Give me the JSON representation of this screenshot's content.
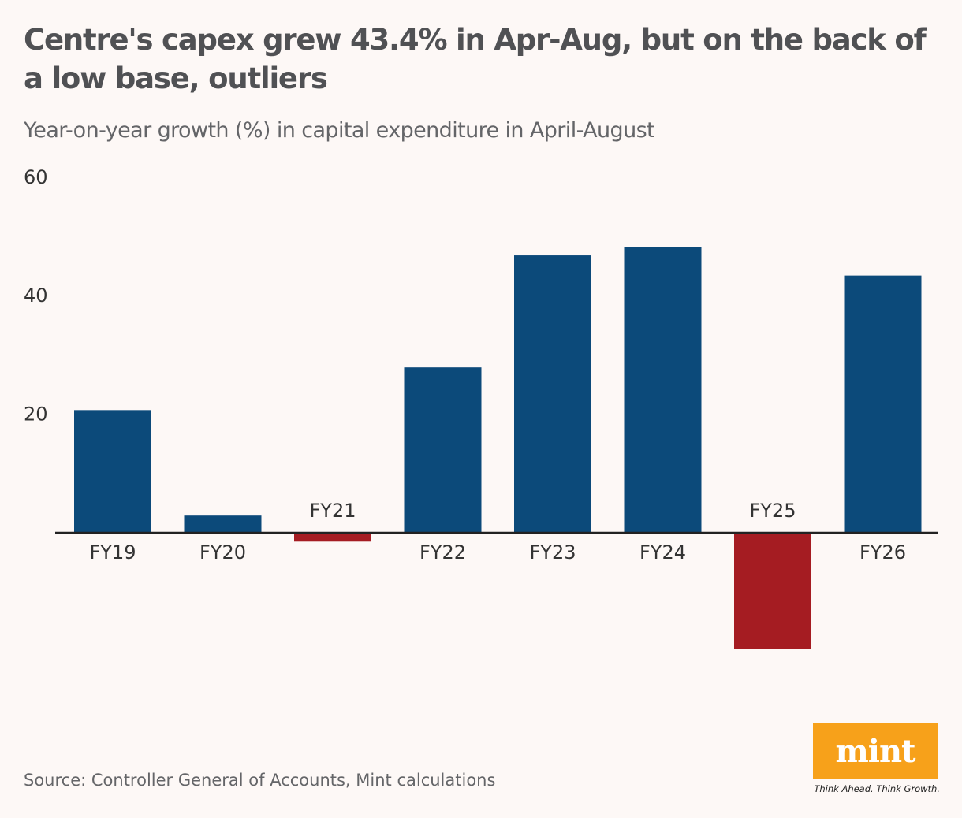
{
  "header": {
    "title": "Centre's capex grew 43.4% in Apr-Aug, but on the back of a low base, outliers",
    "subtitle": "Year-on-year growth (%) in capital expenditure in April-August"
  },
  "chart_data": {
    "type": "bar",
    "categories": [
      "FY19",
      "FY20",
      "FY21",
      "FY22",
      "FY23",
      "FY24",
      "FY25",
      "FY26"
    ],
    "values": [
      20.7,
      2.9,
      -1.5,
      27.9,
      46.8,
      48.2,
      -19.6,
      43.4
    ],
    "title": "Centre's capex grew 43.4% in Apr-Aug, but on the back of a low base, outliers",
    "subtitle": "Year-on-year growth (%) in capital expenditure in April-August",
    "xlabel": "",
    "ylabel": "",
    "yticks": [
      20,
      40,
      60
    ],
    "ylim": [
      -25,
      60
    ],
    "grid": false,
    "colors": {
      "positive": "#0c4a7a",
      "negative": "#a51c22",
      "axis": "#222222"
    }
  },
  "footer": {
    "source": "Source: Controller General of Accounts, Mint calculations",
    "logo": "mint",
    "tagline": "Think Ahead. Think Growth."
  }
}
